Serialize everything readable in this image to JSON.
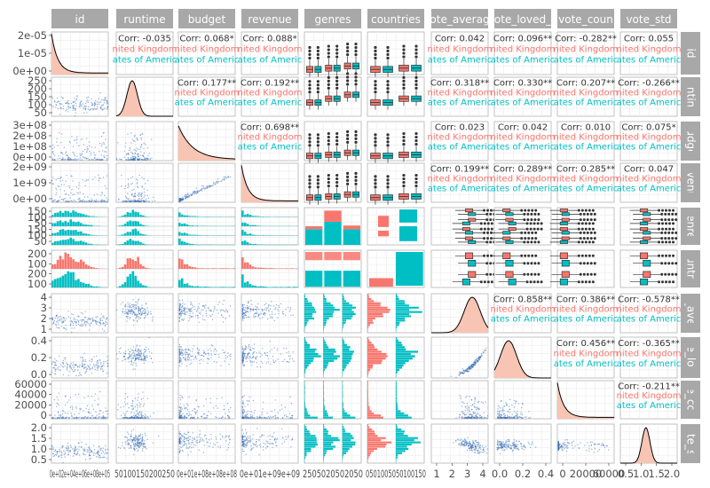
{
  "chart_data": {
    "type": "scatter",
    "title": "",
    "variables": [
      "id",
      "runtime",
      "budget",
      "revenue",
      "genres",
      "countries",
      "vote_average",
      "vote_loved_ratio",
      "vote_count",
      "vote_std"
    ],
    "top_strip_labels": [
      "id",
      "runtime",
      "budget",
      "revenue",
      "genres",
      "countries",
      "ote_averag",
      "ote_loved_",
      "vote_coun",
      "vote_std"
    ],
    "right_strip_labels": [
      "id",
      "runtime",
      "budget",
      "revenue",
      "genres",
      "countries",
      "vote_average",
      "vote_loved",
      "vote_count",
      "vote_std"
    ],
    "group_colors": {
      "United Kingdom": "#F8766D",
      "United States of America": "#00BFC4"
    },
    "point_color": "#3B6FB6",
    "density_fill": "#F8C4B4",
    "correlations": {
      "0-1": "Corr: -0.035",
      "0-2": "Corr: 0.068*",
      "0-3": "Corr: 0.088*",
      "0-6": "Corr: 0.042",
      "0-7": "Corr: 0.096**",
      "0-8": "Corr: -0.282**",
      "0-9": "Corr: 0.055",
      "1-2": "Corr: 0.177**",
      "1-3": "Corr: 0.192**",
      "1-6": "Corr: 0.318**",
      "1-7": "Corr: 0.330**",
      "1-8": "Corr: 0.207**",
      "1-9": "Corr: -0.266**",
      "2-3": "Corr: 0.698**",
      "2-6": "Corr: 0.023",
      "2-7": "Corr: 0.042",
      "2-8": "Corr: 0.010",
      "2-9": "Corr: 0.075*",
      "3-6": "Corr: 0.199**",
      "3-7": "Corr: 0.289**",
      "3-8": "Corr: 0.285**",
      "3-9": "Corr: 0.047",
      "6-7": "Corr: 0.858**",
      "6-8": "Corr: 0.386**",
      "6-9": "Corr: -0.578**",
      "7-8": "Corr: 0.456**",
      "7-9": "Corr: -0.365**",
      "8-9": "Corr: -0.211**"
    },
    "group_label_uk": "nited Kingdom",
    "group_label_us": "ates of Americ",
    "y_tick_labels": {
      "0": [
        "2e-05",
        "1e-05",
        "0e+00"
      ],
      "1": [
        "250",
        "200",
        "150",
        "100",
        "50"
      ],
      "2": [
        "3e+08",
        "2e+08",
        "1e+08",
        "0e+00"
      ],
      "3": [
        "2e+09",
        "1e+09",
        "0e+00"
      ],
      "4": [
        "150",
        "100",
        "50",
        "150",
        "100",
        "50"
      ],
      "5": [
        "200",
        "100",
        "200",
        "100"
      ],
      "6": [
        "4",
        "3",
        "2",
        "1"
      ],
      "7": [
        "0.4",
        "0.2",
        "0.0"
      ],
      "8": [
        "60000",
        "40000",
        "20000",
        "0"
      ],
      "9": [
        "2.0",
        "1.5",
        "1.0",
        "0.5"
      ]
    },
    "x_tick_labels": {
      "0": "0e+02e+04e+06e+08e+05",
      "1": "50100150200250",
      "2": "0e+01e+08e+08e+08",
      "3": "0e+01e+09e+09",
      "4": "2505020502050",
      "5": "0501005050100150",
      "6": [
        "1",
        "2",
        "3",
        "4"
      ],
      "7": [
        "0.0",
        "0.2",
        "0.4"
      ],
      "8": [
        "0",
        "20000",
        "60000"
      ],
      "9": [
        "0.5",
        "1.0",
        "1.5",
        "2.0"
      ]
    }
  }
}
